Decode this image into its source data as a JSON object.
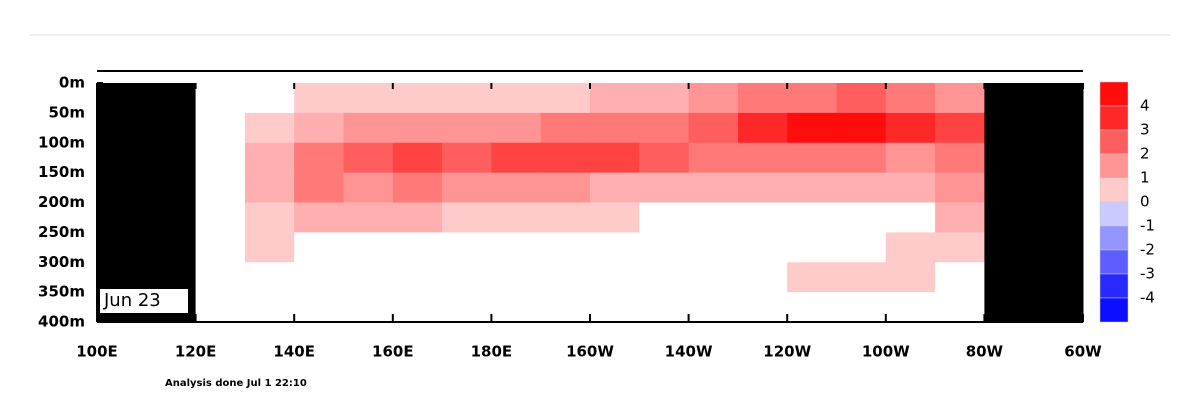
{
  "chart_data": {
    "type": "heatmap",
    "annotations": [
      "Jun 23",
      "Analysis done Jul 1 22:10"
    ],
    "x": [
      105,
      115,
      125,
      135,
      145,
      155,
      165,
      175,
      185,
      195,
      205,
      215,
      225,
      235,
      245,
      255,
      265,
      275,
      285,
      295
    ],
    "y": [
      25,
      75,
      125,
      175,
      225,
      275,
      325,
      375
    ],
    "z": [
      [
        null,
        null,
        0,
        0,
        0.5,
        0.5,
        0.5,
        0.5,
        0.5,
        0.5,
        1,
        1,
        1.5,
        2,
        2,
        2.5,
        2,
        1.5,
        null,
        null
      ],
      [
        null,
        null,
        0,
        0.5,
        1,
        1.5,
        1.5,
        1.5,
        1.5,
        2,
        2,
        2,
        2.5,
        3.5,
        4,
        4,
        3.5,
        3,
        null,
        null
      ],
      [
        null,
        null,
        0,
        1,
        2,
        2.5,
        3,
        2.5,
        3,
        3,
        3,
        2.5,
        2,
        2,
        2,
        2,
        1.5,
        2,
        null,
        null
      ],
      [
        null,
        null,
        0,
        1,
        2,
        1.5,
        2,
        1.5,
        1.5,
        1.5,
        1,
        1,
        1,
        1,
        1,
        1,
        1,
        1.5,
        null,
        null
      ],
      [
        null,
        null,
        0,
        0.5,
        1,
        1,
        1,
        0.5,
        0.5,
        0.5,
        0.5,
        0,
        0,
        0,
        0,
        0,
        0,
        1,
        null,
        null
      ],
      [
        null,
        null,
        0,
        0.5,
        0,
        0,
        0,
        0,
        0,
        0,
        0,
        0,
        0,
        0,
        0,
        0,
        0.5,
        0.5,
        null,
        null
      ],
      [
        null,
        null,
        0,
        0,
        0,
        0,
        0,
        0,
        0,
        0,
        0,
        0,
        0,
        0,
        0.5,
        0.5,
        0.5,
        0,
        null,
        null
      ],
      [
        null,
        null,
        0,
        0,
        0,
        0,
        0,
        0,
        0,
        0,
        0,
        0,
        0,
        0,
        0,
        0,
        0,
        0,
        null,
        null
      ]
    ],
    "xlim": [
      100,
      300
    ],
    "xticks": [
      {
        "value": 100,
        "label": "100E"
      },
      {
        "value": 120,
        "label": "120E"
      },
      {
        "value": 140,
        "label": "140E"
      },
      {
        "value": 160,
        "label": "160E"
      },
      {
        "value": 180,
        "label": "180E"
      },
      {
        "value": 200,
        "label": "160W"
      },
      {
        "value": 220,
        "label": "140W"
      },
      {
        "value": 240,
        "label": "120W"
      },
      {
        "value": 260,
        "label": "100W"
      },
      {
        "value": 280,
        "label": "80W"
      },
      {
        "value": 300,
        "label": "60W"
      }
    ],
    "ylim": [
      400,
      0
    ],
    "yticks": [
      {
        "value": 0,
        "label": "0m"
      },
      {
        "value": 50,
        "label": "50m"
      },
      {
        "value": 100,
        "label": "100m"
      },
      {
        "value": 150,
        "label": "150m"
      },
      {
        "value": 200,
        "label": "200m"
      },
      {
        "value": 250,
        "label": "250m"
      },
      {
        "value": 300,
        "label": "300m"
      },
      {
        "value": 350,
        "label": "350m"
      },
      {
        "value": 400,
        "label": "400m"
      }
    ],
    "colorbar": {
      "ticks": [
        4,
        3,
        2,
        1,
        0,
        -1,
        -2,
        -3,
        -4
      ],
      "max_color": "#ff0000",
      "zero_color": "#ffffff",
      "min_color": "#0000ff"
    },
    "null_color": "#000000"
  }
}
